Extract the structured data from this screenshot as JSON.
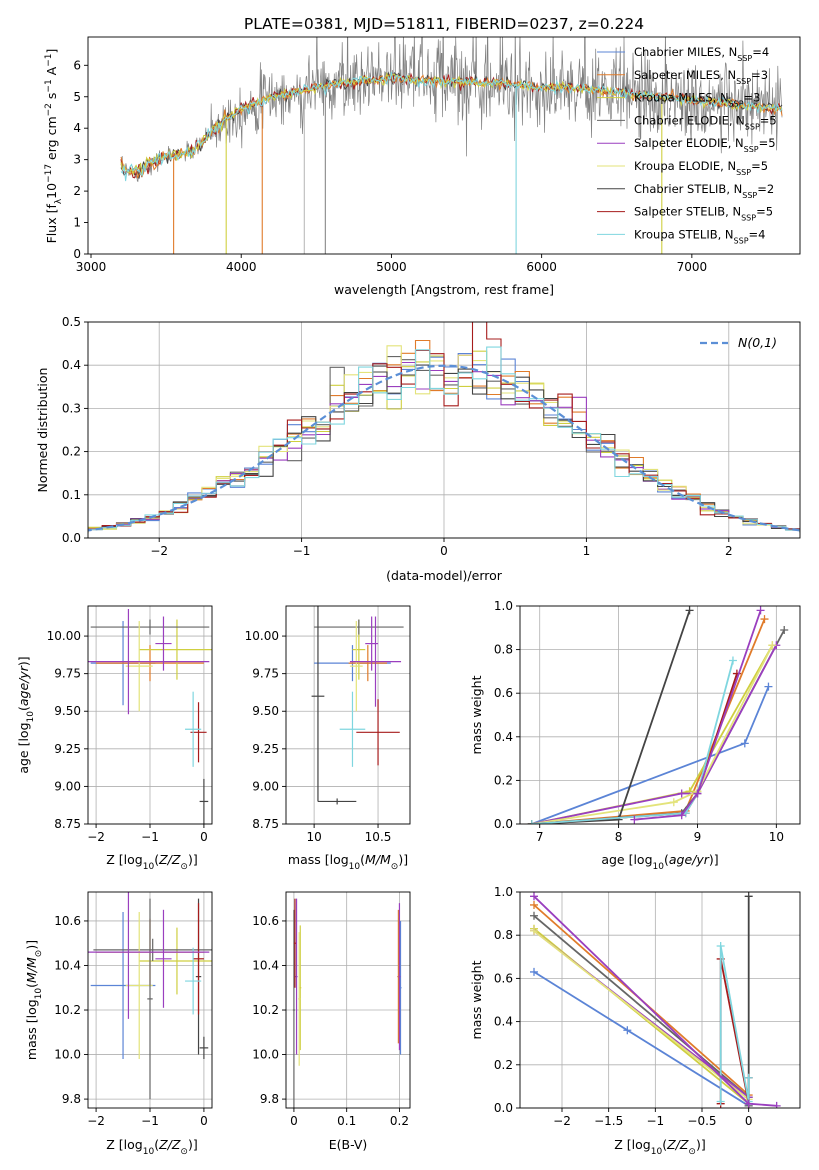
{
  "figure_title": "PLATE=0381, MJD=51811, FIBERID=0237, z=0.224",
  "colors": {
    "Chabrier MILES": "#5b84d6",
    "Salpeter MILES": "#e07b2a",
    "Kroupa MILES": "#cfcf40",
    "Chabrier ELODIE": "#666666",
    "Salpeter ELODIE": "#9a3fbf",
    "Kroupa ELODIE": "#e3e37a",
    "Chabrier STELIB": "#444444",
    "Salpeter STELIB": "#a61c1c",
    "Kroupa STELIB": "#7fd6df",
    "gaussian": "#5b8fd6"
  },
  "chart_data": [
    {
      "id": "spectrum",
      "type": "line",
      "title": "PLATE=0381, MJD=51811, FIBERID=0237, z=0.224",
      "xlabel": "wavelength [Angstrom, rest frame]",
      "ylabel_parts": {
        "pre": "Flux [f",
        "sub": "λ",
        "mid": "10",
        "sup1": "−17",
        "mid2": " erg cm",
        "sup2": "−2",
        "mid3": " s",
        "sup3": "−1",
        "mid4": " A",
        "sup4": "−1",
        "post": "]"
      },
      "xlim": [
        2980,
        7720
      ],
      "ylim": [
        0,
        6.9
      ],
      "xticks": [
        3000,
        4000,
        5000,
        6000,
        7000
      ],
      "yticks": [
        0,
        1,
        2,
        3,
        4,
        5,
        6
      ],
      "legend_position": "top-right",
      "legend": [
        {
          "name": "Chabrier MILES",
          "nssp": "4"
        },
        {
          "name": "Salpeter MILES",
          "nssp": "3"
        },
        {
          "name": "Kroupa MILES",
          "nssp": "3"
        },
        {
          "name": "Chabrier ELODIE",
          "nssp": "5"
        },
        {
          "name": "Salpeter ELODIE",
          "nssp": "5"
        },
        {
          "name": "Kroupa ELODIE",
          "nssp": "5"
        },
        {
          "name": "Chabrier STELIB",
          "nssp": "2"
        },
        {
          "name": "Salpeter STELIB",
          "nssp": "5"
        },
        {
          "name": "Kroupa STELIB",
          "nssp": "4"
        }
      ],
      "data_trend": {
        "x": [
          3200,
          3300,
          3400,
          3500,
          3600,
          3700,
          3800,
          3900,
          4000,
          4100,
          4200,
          4400,
          4600,
          4800,
          5000,
          5200,
          5400,
          5600,
          5800,
          6000,
          6200,
          6400,
          6600,
          6800,
          7000,
          7200,
          7400,
          7600
        ],
        "y": [
          2.7,
          2.6,
          2.9,
          3.1,
          3.2,
          3.3,
          3.9,
          4.3,
          4.6,
          4.8,
          5.0,
          5.2,
          5.4,
          5.5,
          5.6,
          5.5,
          5.5,
          5.45,
          5.4,
          5.3,
          5.3,
          5.2,
          5.1,
          5.0,
          4.9,
          4.8,
          4.7,
          4.6
        ]
      }
    },
    {
      "id": "residuals",
      "type": "histogram",
      "xlabel": "(data-model)/error",
      "ylabel": "Normed distribution",
      "xlim": [
        -2.5,
        2.5
      ],
      "ylim": [
        0,
        0.5
      ],
      "xticks": [
        -2,
        -1,
        0,
        1,
        2
      ],
      "yticks": [
        0.0,
        0.1,
        0.2,
        0.3,
        0.4,
        0.5
      ],
      "grid": true,
      "legend_position": "top-right",
      "gaussian_label": "N(0,1)",
      "gaussian_mu": 0,
      "gaussian_sigma": 1,
      "bin_width": 0.1
    },
    {
      "id": "age_vs_Z",
      "type": "errorbar",
      "xlabel": "Z [log10(Z/Z⊙)]",
      "ylabel": "age  [log10(age/yr)]",
      "xlim": [
        -2.15,
        0.15
      ],
      "ylim": [
        8.75,
        10.2
      ],
      "xticks": [
        -2,
        -1,
        0
      ],
      "yticks": [
        8.75,
        9.0,
        9.25,
        9.5,
        9.75,
        10.0
      ],
      "grid": true,
      "points": [
        {
          "m": "Chabrier MILES",
          "x": -1.5,
          "xe": 0.6,
          "y": 9.82,
          "ye": 0.28
        },
        {
          "m": "Salpeter MILES",
          "x": -1.0,
          "xe": 1.0,
          "y": 9.82,
          "ye": 0.12
        },
        {
          "m": "Kroupa MILES",
          "x": -0.5,
          "xe": 0.7,
          "y": 9.91,
          "ye": 0.2
        },
        {
          "m": "Chabrier ELODIE",
          "x": -1.0,
          "xe": 1.1,
          "y": 10.06,
          "ye": 0.05
        },
        {
          "m": "Salpeter ELODIE",
          "x": -0.75,
          "xe": 0.15,
          "y": 9.95,
          "ye": 0.18
        },
        {
          "m": "Kroupa ELODIE",
          "x": -1.2,
          "xe": 0.25,
          "y": 9.8,
          "ye": 0.3
        },
        {
          "m": "Chabrier STELIB",
          "x": 0.0,
          "xe": 0.08,
          "y": 8.9,
          "ye": 0.15
        },
        {
          "m": "Salpeter STELIB",
          "x": -0.1,
          "xe": 0.15,
          "y": 9.36,
          "ye": 0.2
        },
        {
          "m": "Kroupa STELIB",
          "x": -0.2,
          "xe": 0.15,
          "y": 9.38,
          "ye": 0.25
        },
        {
          "m": "Salpeter ELODIE",
          "x": -1.4,
          "xe": 1.5,
          "y": 9.83,
          "ye": 0.35
        }
      ]
    },
    {
      "id": "age_vs_mass",
      "type": "errorbar",
      "xlabel": "mass [log10(M/M⊙)]",
      "xlim": [
        9.78,
        10.75
      ],
      "ylim": [
        8.75,
        10.2
      ],
      "xticks": [
        10.0,
        10.5
      ],
      "yticks": [
        8.75,
        9.0,
        9.25,
        9.5,
        9.75,
        10.0
      ],
      "grid": true,
      "points": [
        {
          "m": "Chabrier MILES",
          "x": 10.3,
          "xe": 0.3,
          "y": 9.82,
          "ye": 0.12
        },
        {
          "m": "Salpeter MILES",
          "x": 10.42,
          "xe": 0.15,
          "y": 9.82,
          "ye": 0.12
        },
        {
          "m": "Kroupa MILES",
          "x": 10.35,
          "xe": 0.05,
          "y": 9.91,
          "ye": 0.2
        },
        {
          "m": "Chabrier ELODIE",
          "x": 10.35,
          "xe": 0.35,
          "y": 10.06,
          "ye": 0.05
        },
        {
          "m": "Salpeter ELODIE",
          "x": 10.45,
          "xe": 0.05,
          "y": 9.95,
          "ye": 0.18
        },
        {
          "m": "Kroupa ELODIE",
          "x": 10.33,
          "xe": 0.05,
          "y": 9.8,
          "ye": 0.3
        },
        {
          "m": "Chabrier STELIB",
          "x": 10.03,
          "xe": 0.05,
          "y": 9.6,
          "ye": 0.7
        },
        {
          "m": "Chabrier STELIB",
          "x": 10.18,
          "xe": 0.15,
          "y": 8.9,
          "ye": 0.02
        },
        {
          "m": "Salpeter STELIB",
          "x": 10.5,
          "xe": 0.17,
          "y": 9.36,
          "ye": 0.22
        },
        {
          "m": "Kroupa STELIB",
          "x": 10.3,
          "xe": 0.1,
          "y": 9.38,
          "ye": 0.25
        },
        {
          "m": "Salpeter ELODIE",
          "x": 10.48,
          "xe": 0.2,
          "y": 9.83,
          "ye": 0.3
        }
      ]
    },
    {
      "id": "mass_weight_vs_age",
      "type": "line",
      "xlabel": "age  [log10(age/yr)]",
      "ylabel": "mass weight",
      "xlim": [
        6.75,
        10.3
      ],
      "ylim": [
        0,
        1.0
      ],
      "xticks": [
        7,
        8,
        9,
        10
      ],
      "yticks": [
        0.0,
        0.2,
        0.4,
        0.6,
        0.8,
        1.0
      ],
      "grid": true,
      "series": [
        {
          "m": "Chabrier MILES",
          "x": [
            6.9,
            9.6,
            9.9
          ],
          "y": [
            0.0,
            0.37,
            0.63
          ]
        },
        {
          "m": "Salpeter MILES",
          "x": [
            6.9,
            8.85,
            9.85
          ],
          "y": [
            0.0,
            0.06,
            0.94
          ]
        },
        {
          "m": "Kroupa MILES",
          "x": [
            6.9,
            8.9,
            9.95
          ],
          "y": [
            0.0,
            0.15,
            0.82
          ]
        },
        {
          "m": "Chabrier ELODIE",
          "x": [
            6.9,
            8.8,
            9.0,
            10.1
          ],
          "y": [
            0.0,
            0.05,
            0.14,
            0.89
          ]
        },
        {
          "m": "Salpeter ELODIE",
          "x": [
            6.9,
            8.8,
            9.0,
            10.0
          ],
          "y": [
            0.0,
            0.14,
            0.14,
            0.82
          ]
        },
        {
          "m": "Kroupa ELODIE",
          "x": [
            6.9,
            8.7,
            9.0,
            9.95
          ],
          "y": [
            0.0,
            0.1,
            0.15,
            0.82
          ]
        },
        {
          "m": "Chabrier STELIB",
          "x": [
            6.9,
            8.0,
            8.9
          ],
          "y": [
            0.0,
            0.02,
            0.98
          ]
        },
        {
          "m": "Salpeter STELIB",
          "x": [
            6.9,
            8.85,
            9.0,
            9.5
          ],
          "y": [
            0.0,
            0.05,
            0.14,
            0.69
          ]
        },
        {
          "m": "Kroupa STELIB",
          "x": [
            6.9,
            8.85,
            9.0,
            9.45
          ],
          "y": [
            0.0,
            0.05,
            0.14,
            0.75
          ]
        },
        {
          "m": "Salpeter ELODIE",
          "x": [
            8.2,
            8.8,
            9.0,
            9.8
          ],
          "y": [
            0.02,
            0.04,
            0.14,
            0.98
          ]
        }
      ]
    },
    {
      "id": "mass_vs_Z",
      "type": "errorbar",
      "xlabel": "Z [log10(Z/Z⊙)]",
      "ylabel": "mass [log10(M/M⊙)]",
      "xlim": [
        -2.15,
        0.15
      ],
      "ylim": [
        9.76,
        10.73
      ],
      "xticks": [
        -2,
        -1,
        0
      ],
      "yticks": [
        9.8,
        10.0,
        10.2,
        10.4,
        10.6
      ],
      "grid": true,
      "points": [
        {
          "m": "Chabrier MILES",
          "x": -1.5,
          "xe": 0.6,
          "y": 10.31,
          "ye": 0.33
        },
        {
          "m": "Salpeter MILES",
          "x": -1.0,
          "xe": 1.0,
          "y": 10.46,
          "ye": 0.15
        },
        {
          "m": "Kroupa MILES",
          "x": -0.5,
          "xe": 0.7,
          "y": 10.42,
          "ye": 0.15
        },
        {
          "m": "Chabrier ELODIE",
          "x": -0.95,
          "xe": 1.1,
          "y": 10.47,
          "ye": 0.05
        },
        {
          "m": "Salpeter ELODIE",
          "x": -0.75,
          "xe": 0.15,
          "y": 10.43,
          "ye": 0.22
        },
        {
          "m": "Kroupa ELODIE",
          "x": -1.2,
          "xe": 0.25,
          "y": 10.31,
          "ye": 0.33
        },
        {
          "m": "Chabrier STELIB",
          "x": 0.0,
          "xe": 0.08,
          "y": 10.03,
          "ye": 0.05
        },
        {
          "m": "Chabrier STELIB",
          "x": -0.1,
          "xe": 0.05,
          "y": 10.35,
          "ye": 0.35
        },
        {
          "m": "Salpeter STELIB",
          "x": -0.1,
          "xe": 0.1,
          "y": 10.43,
          "ye": 0.25
        },
        {
          "m": "Kroupa STELIB",
          "x": -0.2,
          "xe": 0.15,
          "y": 10.33,
          "ye": 0.15
        },
        {
          "m": "Chabrier ELODIE",
          "x": -1.0,
          "xe": 0.05,
          "y": 10.25,
          "ye": 0.45
        },
        {
          "m": "Salpeter ELODIE",
          "x": -1.4,
          "xe": 1.5,
          "y": 10.46,
          "ye": 0.3
        }
      ]
    },
    {
      "id": "mass_vs_EBV",
      "type": "errorbar",
      "xlabel": "E(B-V)",
      "xlim": [
        -0.015,
        0.22
      ],
      "ylim": [
        9.76,
        10.73
      ],
      "xticks": [
        0.0,
        0.1,
        0.2
      ],
      "yticks": [
        9.8,
        10.0,
        10.2,
        10.4,
        10.6
      ],
      "grid": true,
      "points": [
        {
          "m": "Chabrier ELODIE",
          "x": 0.0,
          "xe": 0.002,
          "y": 10.2,
          "ye": 0.45
        },
        {
          "m": "Salpeter STELIB",
          "x": 0.002,
          "xe": 0.002,
          "y": 10.5,
          "ye": 0.2
        },
        {
          "m": "Salpeter ELODIE",
          "x": 0.005,
          "xe": 0.002,
          "y": 10.35,
          "ye": 0.35
        },
        {
          "m": "Kroupa MILES",
          "x": 0.012,
          "xe": 0.002,
          "y": 10.3,
          "ye": 0.28
        },
        {
          "m": "Kroupa ELODIE",
          "x": 0.01,
          "xe": 0.002,
          "y": 10.25,
          "ye": 0.3
        },
        {
          "m": "Chabrier MILES",
          "x": 0.202,
          "xe": 0.002,
          "y": 10.3,
          "ye": 0.3
        },
        {
          "m": "Salpeter MILES",
          "x": 0.198,
          "xe": 0.002,
          "y": 10.35,
          "ye": 0.3
        },
        {
          "m": "Salpeter ELODIE",
          "x": 0.2,
          "xe": 0.002,
          "y": 10.35,
          "ye": 0.33
        }
      ]
    },
    {
      "id": "mass_weight_vs_Z",
      "type": "line",
      "xlabel": "Z [log10(Z/Z⊙)]",
      "ylabel": "mass weight",
      "xlim": [
        -2.45,
        0.55
      ],
      "ylim": [
        0,
        1.0
      ],
      "xticks": [
        -2.0,
        -1.5,
        -1.0,
        -0.5,
        0.0
      ],
      "yticks": [
        0.0,
        0.2,
        0.4,
        0.6,
        0.8,
        1.0
      ],
      "grid": true,
      "series": [
        {
          "m": "Chabrier MILES",
          "x": [
            -2.3,
            -1.3,
            0.0
          ],
          "y": [
            0.63,
            0.36,
            0.01
          ]
        },
        {
          "m": "Salpeter MILES",
          "x": [
            -2.3,
            0.0
          ],
          "y": [
            0.94,
            0.06
          ]
        },
        {
          "m": "Kroupa MILES",
          "x": [
            -2.3,
            0.0
          ],
          "y": [
            0.83,
            0.02
          ]
        },
        {
          "m": "Chabrier ELODIE",
          "x": [
            -2.3,
            0.0,
            0.0
          ],
          "y": [
            0.89,
            0.05,
            0.01
          ]
        },
        {
          "m": "Salpeter ELODIE",
          "x": [
            -2.3,
            0.0
          ],
          "y": [
            0.82,
            0.05
          ]
        },
        {
          "m": "Kroupa ELODIE",
          "x": [
            -2.3,
            0.0
          ],
          "y": [
            0.82,
            0.04
          ]
        },
        {
          "m": "Chabrier STELIB",
          "x": [
            0.0,
            0.0
          ],
          "y": [
            0.02,
            0.98
          ]
        },
        {
          "m": "Salpeter STELIB",
          "x": [
            -0.3,
            -0.3,
            0.0,
            0.0
          ],
          "y": [
            0.02,
            0.69,
            0.02,
            0.14
          ]
        },
        {
          "m": "Kroupa STELIB",
          "x": [
            -0.3,
            -0.3,
            0.0,
            0.0
          ],
          "y": [
            0.03,
            0.75,
            0.03,
            0.14
          ]
        },
        {
          "m": "Salpeter ELODIE",
          "x": [
            -2.3,
            0.0,
            0.3
          ],
          "y": [
            0.98,
            0.02,
            0.01
          ]
        }
      ]
    }
  ]
}
